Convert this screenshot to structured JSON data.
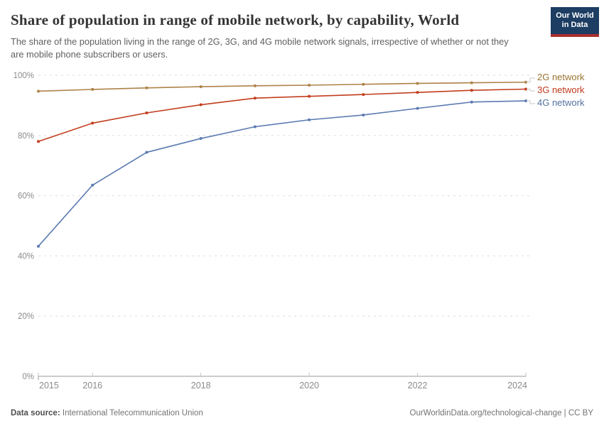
{
  "header": {
    "title": "Share of population in range of mobile network, by capability, World",
    "subtitle": "The share of the population living in the range of 2G, 3G, and 4G mobile network signals, irrespective of whether or not they are mobile phone subscribers or users.",
    "logo": {
      "line1": "Our World",
      "line2": "in Data",
      "bg_color": "#1d3d63",
      "accent_color": "#a82e2e"
    }
  },
  "chart_data": {
    "type": "line",
    "title": "Share of population in range of mobile network, by capability, World",
    "x": [
      2015,
      2016,
      2017,
      2018,
      2019,
      2020,
      2021,
      2022,
      2023,
      2024
    ],
    "series": [
      {
        "name": "2G network",
        "color": "#ad8248",
        "label_color": "#9a7430",
        "values": [
          94.7,
          95.3,
          95.8,
          96.2,
          96.5,
          96.7,
          97.0,
          97.3,
          97.5,
          97.7
        ]
      },
      {
        "name": "3G network",
        "color": "#c23d1d",
        "label_color": "#c0391a",
        "values": [
          78.0,
          84.1,
          87.5,
          90.2,
          92.4,
          93.0,
          93.6,
          94.3,
          95.0,
          95.4
        ]
      },
      {
        "name": "4G network",
        "color": "#5b7ab1",
        "label_color": "#53719f",
        "values": [
          43.2,
          63.5,
          74.4,
          79.0,
          82.9,
          85.2,
          86.8,
          89.0,
          91.1,
          91.5
        ]
      }
    ],
    "ylim": [
      0,
      100
    ],
    "yticks": [
      0,
      20,
      40,
      60,
      80,
      100
    ],
    "ytick_suffix": "%",
    "xticks": [
      2015,
      2016,
      2018,
      2020,
      2022,
      2024
    ],
    "grid": "horizontal-dashed",
    "legend_position": "right",
    "grid_color": "#dedede",
    "axis_color": "#9a9a9a",
    "tick_label_color": "#8b8b8b",
    "connector_color": "#c9c9c9"
  },
  "footer": {
    "datasource_label": "Data source:",
    "datasource_value": "International Telecommunication Union",
    "attribution": "OurWorldinData.org/technological-change | CC BY"
  }
}
